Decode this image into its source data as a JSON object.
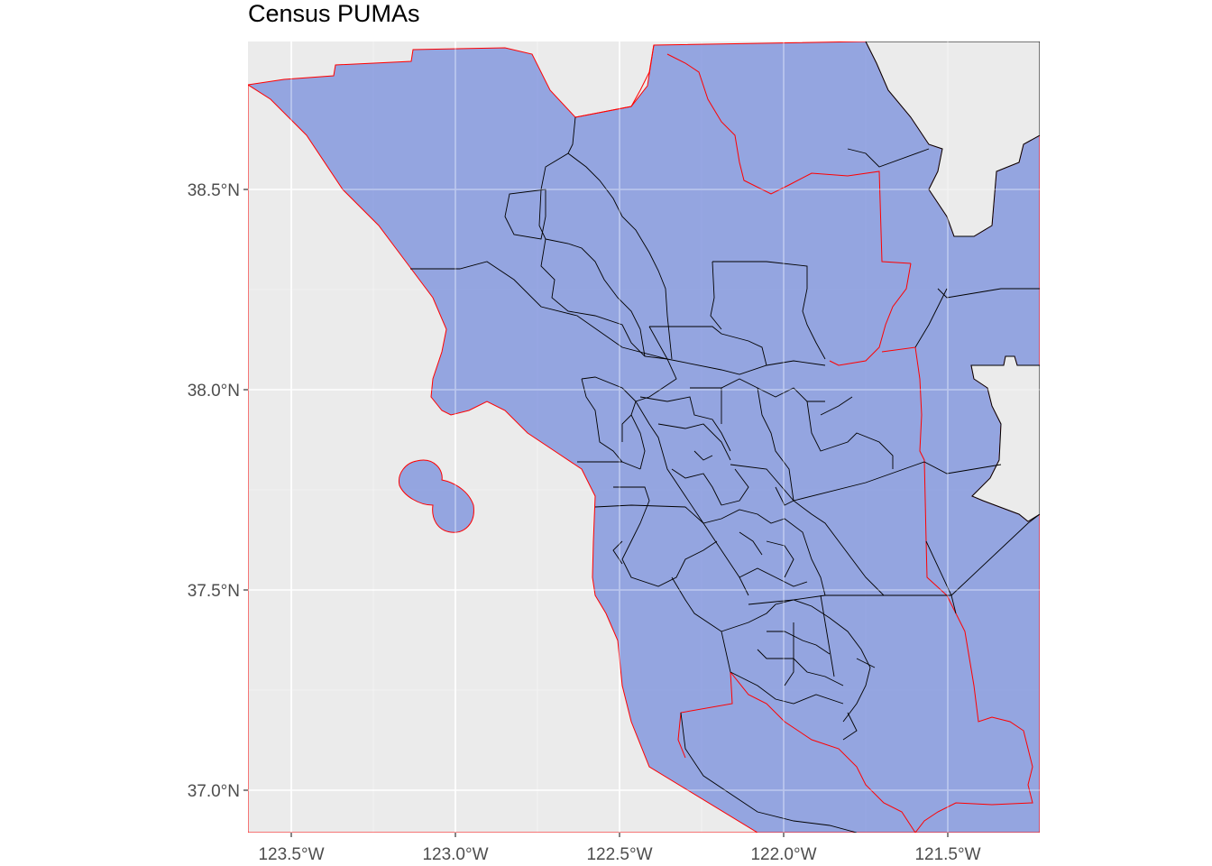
{
  "title": "Census PUMAs",
  "colors": {
    "panel_background": "#ebebeb",
    "gridline": "#ffffff",
    "puma_fill": "#6f88dc",
    "puma_fill_opacity": 0.7,
    "puma_border": "#000000",
    "county_border": "#ff0000",
    "axis_text": "#4d4d4d"
  },
  "axes": {
    "x": {
      "range_deg": [
        -123.63,
        -121.24
      ],
      "ticks": [
        {
          "value": -123.5,
          "label": "123.5°W"
        },
        {
          "value": -123.0,
          "label": "123.0°W"
        },
        {
          "value": -122.5,
          "label": "122.5°W"
        },
        {
          "value": -122.0,
          "label": "122.0°W"
        },
        {
          "value": -121.5,
          "label": "121.5°W"
        }
      ]
    },
    "y": {
      "range_deg": [
        36.88,
        38.85
      ],
      "ticks": [
        {
          "value": 38.5,
          "label": "38.5°N"
        },
        {
          "value": 38.0,
          "label": "38.0°N"
        },
        {
          "value": 37.5,
          "label": "37.5°N"
        },
        {
          "value": 37.0,
          "label": "37.0°N"
        }
      ]
    },
    "grid": true
  },
  "map": {
    "layer": "Census PUMA polygons",
    "region": "San Francisco Bay Area, California"
  }
}
